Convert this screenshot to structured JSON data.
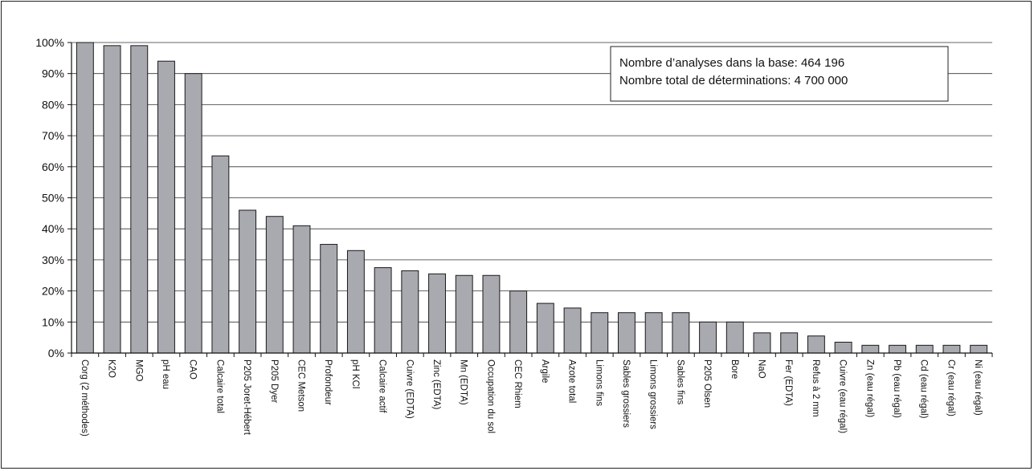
{
  "chart_data": {
    "type": "bar",
    "title": "",
    "xlabel": "",
    "ylabel": "",
    "ylim": [
      0,
      100
    ],
    "y_ticks": [
      "0%",
      "10%",
      "20%",
      "30%",
      "40%",
      "50%",
      "60%",
      "70%",
      "80%",
      "90%",
      "100%"
    ],
    "grid": "horizontal",
    "bar_color": "#a9aab0",
    "bar_edge_color": "#1a1a1a",
    "categories": [
      "Corg (2 méthodes)",
      "K2O",
      "MGO",
      "pH eau",
      "CAO",
      "Calcaire total",
      "P205 Joret-Hébert",
      "P205 Dyer",
      "CEC Metson",
      "Profondeur",
      "pH KCl",
      "Calcaire actif",
      "Cuivre (EDTA)",
      "Zinc (EDTA)",
      "Mn (EDTA)",
      "Occupation du sol",
      "CEC Rhiem",
      "Argile",
      "Azote total",
      "Limons fins",
      "Sables grossiers",
      "Limons grossiers",
      "Sables fins",
      "P205 Olsen",
      "Bore",
      "NaO",
      "Fer (EDTA)",
      "Refus à 2 mm",
      "Cuivre (eau régal)",
      "Zn (eau régal)",
      "Pb (eau régal)",
      "Cd (eau régal)",
      "Cr (eau régal)",
      "Ni (eau régal)"
    ],
    "values": [
      100,
      99,
      99,
      94,
      90,
      63.5,
      46,
      44,
      41,
      35,
      33,
      27.5,
      26.5,
      25.5,
      25,
      25,
      20,
      16,
      14.5,
      13,
      13,
      13,
      13,
      10,
      10,
      6.5,
      6.5,
      5.5,
      3.5,
      2.5,
      2.5,
      2.5,
      2.5,
      2.5
    ],
    "annotation": {
      "position": "top-right",
      "lines": [
        "Nombre d’analyses dans la base:  464 196",
        "Nombre total de déterminations: 4 700 000"
      ]
    }
  }
}
